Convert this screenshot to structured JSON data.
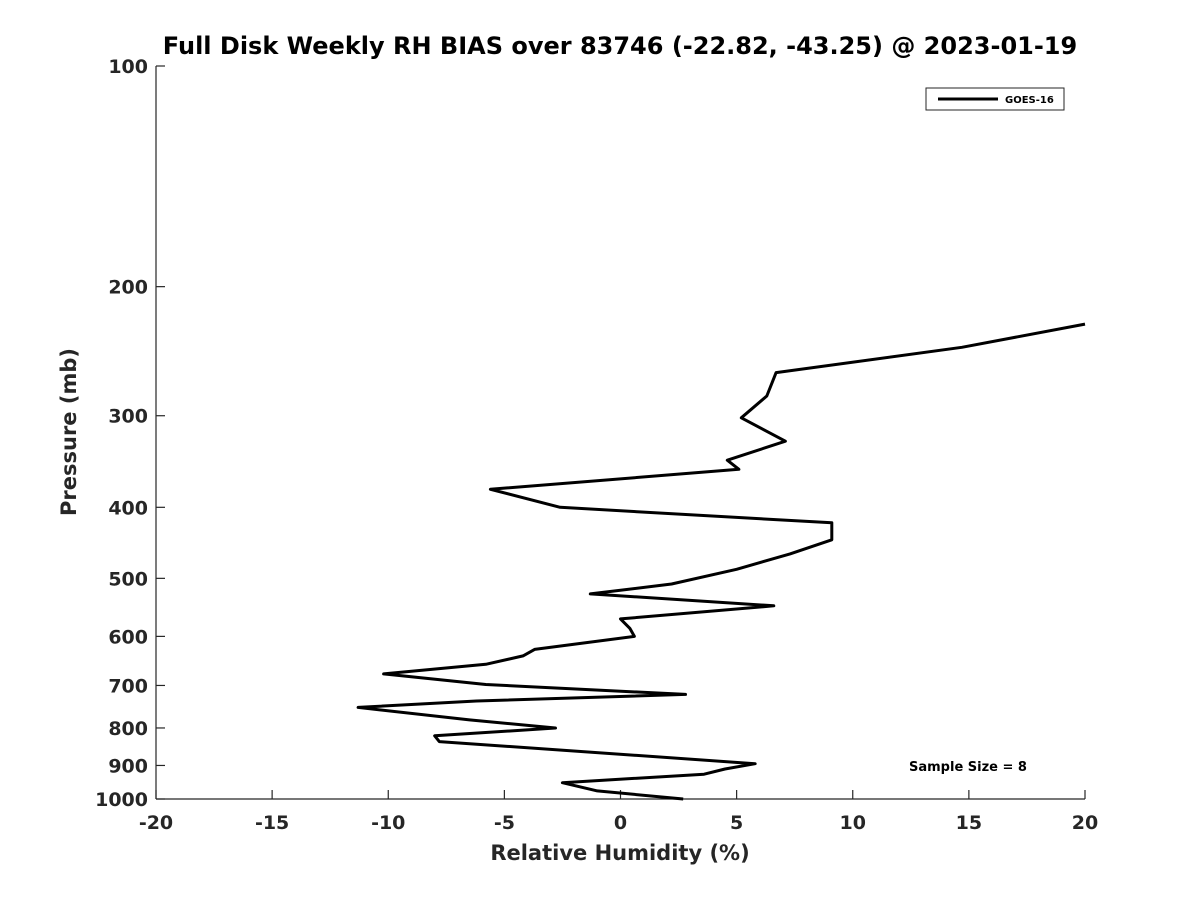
{
  "chart_data": {
    "type": "line",
    "title": "Full Disk Weekly RH BIAS over 83746 (-22.82, -43.25) @ 2023-01-19",
    "xlabel": "Relative Humidity (%)",
    "ylabel": "Pressure (mb)",
    "xlim": [
      -20,
      20
    ],
    "ylim": [
      1000,
      100
    ],
    "yscale": "log",
    "y_reversed": true,
    "grid": false,
    "legend_position": "top-right",
    "x_ticks": [
      -20,
      -15,
      -10,
      -5,
      0,
      5,
      10,
      15,
      20
    ],
    "x_tick_labels": [
      "-20",
      "-15",
      "-10",
      "-5",
      "0",
      "5",
      "10",
      "15",
      "20"
    ],
    "y_ticks": [
      100,
      200,
      300,
      400,
      500,
      600,
      700,
      800,
      900,
      1000
    ],
    "y_tick_labels": [
      "100",
      "200",
      "300",
      "400",
      "500",
      "600",
      "700",
      "800",
      "900",
      "1000"
    ],
    "series": [
      {
        "name": "GOES-16",
        "color": "#000000",
        "points": [
          {
            "x": 2.7,
            "y": 1000
          },
          {
            "x": -1.0,
            "y": 975
          },
          {
            "x": -2.5,
            "y": 950
          },
          {
            "x": 3.6,
            "y": 925
          },
          {
            "x": 4.5,
            "y": 910
          },
          {
            "x": 5.8,
            "y": 895
          },
          {
            "x": -7.8,
            "y": 835
          },
          {
            "x": -8.0,
            "y": 820
          },
          {
            "x": -2.8,
            "y": 800
          },
          {
            "x": -6.5,
            "y": 780
          },
          {
            "x": -11.3,
            "y": 750
          },
          {
            "x": -6.2,
            "y": 735
          },
          {
            "x": 2.8,
            "y": 720
          },
          {
            "x": -5.8,
            "y": 698
          },
          {
            "x": -10.2,
            "y": 675
          },
          {
            "x": -5.8,
            "y": 655
          },
          {
            "x": -4.2,
            "y": 638
          },
          {
            "x": -3.7,
            "y": 625
          },
          {
            "x": 0.6,
            "y": 600
          },
          {
            "x": 0.4,
            "y": 585
          },
          {
            "x": 0.0,
            "y": 568
          },
          {
            "x": 6.6,
            "y": 545
          },
          {
            "x": -1.3,
            "y": 525
          },
          {
            "x": 2.2,
            "y": 509
          },
          {
            "x": 5.0,
            "y": 486
          },
          {
            "x": 7.3,
            "y": 463
          },
          {
            "x": 9.1,
            "y": 443
          },
          {
            "x": 9.1,
            "y": 420
          },
          {
            "x": -2.6,
            "y": 400
          },
          {
            "x": -5.6,
            "y": 378
          },
          {
            "x": 5.1,
            "y": 355
          },
          {
            "x": 4.6,
            "y": 345
          },
          {
            "x": 7.1,
            "y": 325
          },
          {
            "x": 5.2,
            "y": 302
          },
          {
            "x": 6.3,
            "y": 282
          },
          {
            "x": 6.7,
            "y": 262
          },
          {
            "x": 14.7,
            "y": 242
          },
          {
            "x": 20.0,
            "y": 225
          }
        ]
      }
    ],
    "annotation": "Sample Size = 8"
  }
}
